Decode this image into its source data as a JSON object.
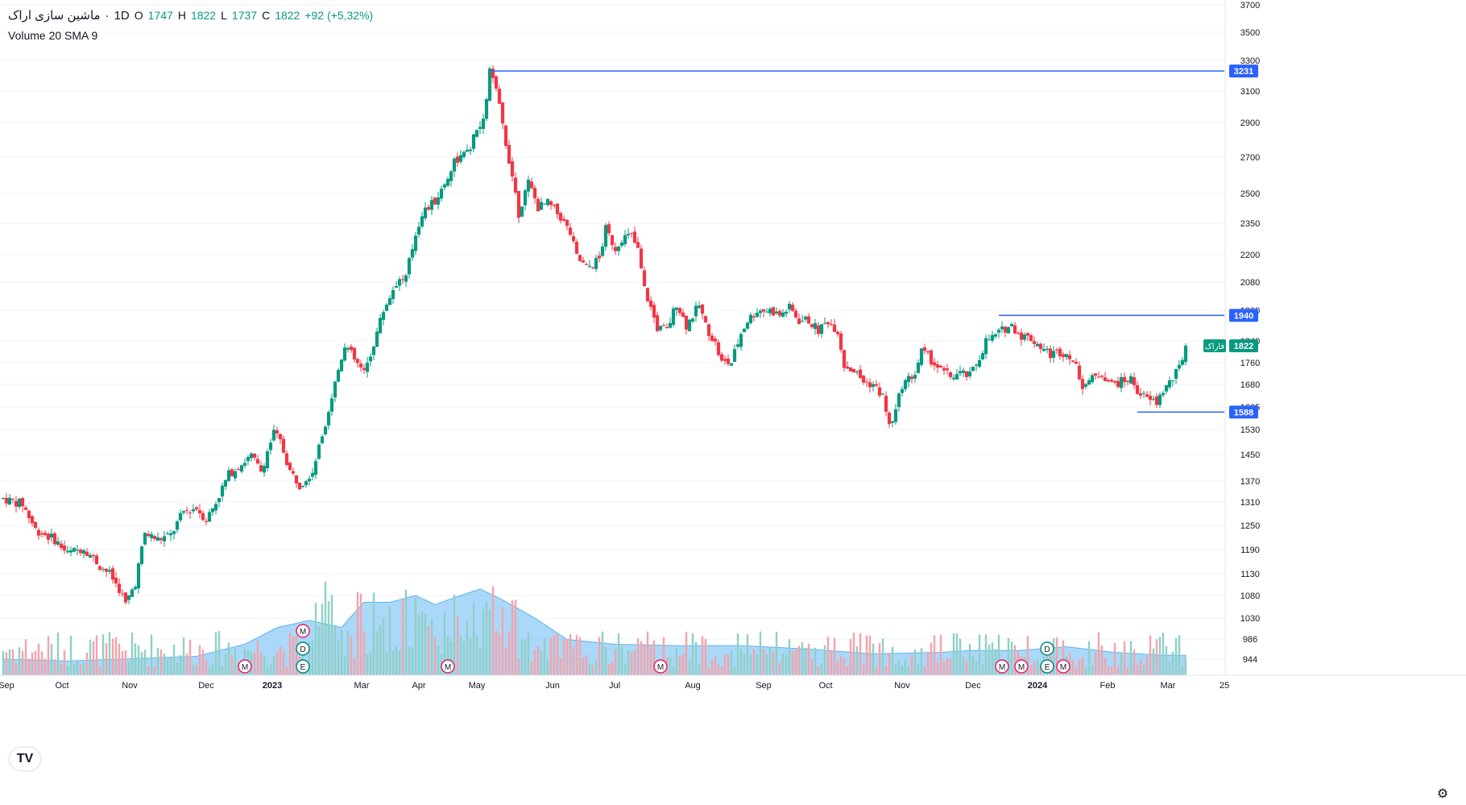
{
  "legend": {
    "symbol": "ماشین سازی اراک",
    "interval": "1D",
    "o_label": "O",
    "o": "1747",
    "h_label": "H",
    "h": "1822",
    "l_label": "L",
    "l": "1737",
    "c_label": "C",
    "c": "1822",
    "change": "+92 (+5,32%)",
    "volume_indicator": "Volume 20 SMA 9"
  },
  "colors": {
    "up": "#089981",
    "down": "#f23645",
    "up_volume": "#8fd0c6",
    "down_volume": "#f5a3aa",
    "volume_sma_fill": "#8ecbf5",
    "hline": "#2962ff",
    "grid": "#f0f3fa",
    "axis_text": "#131722"
  },
  "chart_data": {
    "type": "candlestick",
    "instrument": "ماشین سازی اراک",
    "interval": "1D",
    "y_ticks": [
      944,
      986,
      1030,
      1080,
      1130,
      1190,
      1250,
      1310,
      1370,
      1450,
      1530,
      1605,
      1680,
      1760,
      1840,
      1960,
      2080,
      2200,
      2350,
      2500,
      2700,
      2900,
      3100,
      3300,
      3500,
      3700
    ],
    "y_range": [
      880,
      3700
    ],
    "x_labels": [
      "Sep",
      "Oct",
      "Nov",
      "Dec",
      "2023",
      "Mar",
      "Apr",
      "May",
      "Jun",
      "Jul",
      "Aug",
      "Sep",
      "Oct",
      "Nov",
      "Dec",
      "2024",
      "Feb",
      "Mar",
      "25"
    ],
    "horizontal_lines": [
      {
        "value": 3231,
        "label": "3231"
      },
      {
        "value": 1940,
        "label": "1940"
      },
      {
        "value": 1588,
        "label": "1588"
      }
    ],
    "last_price": {
      "value": 1822,
      "label": "1822",
      "tag": "فاراک"
    },
    "price_path": [
      [
        0,
        1320
      ],
      [
        6,
        1305
      ],
      [
        10,
        1240
      ],
      [
        16,
        1215
      ],
      [
        20,
        1180
      ],
      [
        25,
        1195
      ],
      [
        30,
        1150
      ],
      [
        33,
        1130
      ],
      [
        36,
        1095
      ],
      [
        38,
        1060
      ],
      [
        41,
        1110
      ],
      [
        44,
        1230
      ],
      [
        48,
        1215
      ],
      [
        52,
        1225
      ],
      [
        56,
        1285
      ],
      [
        60,
        1295
      ],
      [
        63,
        1265
      ],
      [
        66,
        1310
      ],
      [
        70,
        1390
      ],
      [
        73,
        1415
      ],
      [
        77,
        1445
      ],
      [
        80,
        1400
      ],
      [
        84,
        1520
      ],
      [
        86,
        1490
      ],
      [
        89,
        1400
      ],
      [
        92,
        1360
      ],
      [
        96,
        1400
      ],
      [
        98,
        1470
      ],
      [
        102,
        1640
      ],
      [
        106,
        1830
      ],
      [
        109,
        1770
      ],
      [
        112,
        1720
      ],
      [
        114,
        1790
      ],
      [
        118,
        1960
      ],
      [
        122,
        2080
      ],
      [
        125,
        2100
      ],
      [
        128,
        2300
      ],
      [
        130,
        2400
      ],
      [
        134,
        2460
      ],
      [
        137,
        2550
      ],
      [
        140,
        2680
      ],
      [
        144,
        2720
      ],
      [
        147,
        2850
      ],
      [
        149,
        2900
      ],
      [
        151,
        3231
      ],
      [
        153,
        3100
      ],
      [
        156,
        2780
      ],
      [
        158,
        2600
      ],
      [
        160,
        2400
      ],
      [
        163,
        2560
      ],
      [
        166,
        2430
      ],
      [
        169,
        2450
      ],
      [
        173,
        2380
      ],
      [
        176,
        2300
      ],
      [
        178,
        2190
      ],
      [
        181,
        2140
      ],
      [
        185,
        2180
      ],
      [
        187,
        2320
      ],
      [
        190,
        2230
      ],
      [
        192,
        2280
      ],
      [
        195,
        2290
      ],
      [
        197,
        2220
      ],
      [
        199,
        2050
      ],
      [
        203,
        1890
      ],
      [
        206,
        1880
      ],
      [
        209,
        1990
      ],
      [
        212,
        1900
      ],
      [
        216,
        1980
      ],
      [
        218,
        1900
      ],
      [
        221,
        1830
      ],
      [
        223,
        1760
      ],
      [
        226,
        1760
      ],
      [
        229,
        1870
      ],
      [
        231,
        1920
      ],
      [
        234,
        1960
      ],
      [
        238,
        1960
      ],
      [
        241,
        1940
      ],
      [
        244,
        1970
      ],
      [
        247,
        1920
      ],
      [
        250,
        1920
      ],
      [
        253,
        1880
      ],
      [
        256,
        1920
      ],
      [
        259,
        1880
      ],
      [
        261,
        1750
      ],
      [
        264,
        1730
      ],
      [
        267,
        1690
      ],
      [
        270,
        1680
      ],
      [
        273,
        1640
      ],
      [
        275,
        1540
      ],
      [
        277,
        1590
      ],
      [
        279,
        1680
      ],
      [
        283,
        1720
      ],
      [
        285,
        1800
      ],
      [
        288,
        1770
      ],
      [
        291,
        1730
      ],
      [
        294,
        1710
      ],
      [
        297,
        1720
      ],
      [
        300,
        1710
      ],
      [
        303,
        1780
      ],
      [
        305,
        1840
      ],
      [
        308,
        1860
      ],
      [
        311,
        1890
      ],
      [
        313,
        1900
      ],
      [
        316,
        1860
      ],
      [
        319,
        1850
      ],
      [
        322,
        1820
      ],
      [
        325,
        1790
      ],
      [
        328,
        1800
      ],
      [
        331,
        1790
      ],
      [
        333,
        1740
      ],
      [
        335,
        1680
      ],
      [
        338,
        1700
      ],
      [
        341,
        1720
      ],
      [
        344,
        1680
      ],
      [
        347,
        1690
      ],
      [
        350,
        1700
      ],
      [
        352,
        1660
      ],
      [
        355,
        1630
      ],
      [
        358,
        1620
      ],
      [
        360,
        1660
      ],
      [
        363,
        1700
      ],
      [
        365,
        1740
      ],
      [
        367,
        1822
      ]
    ],
    "volume_sma_path": [
      [
        0,
        944
      ],
      [
        20,
        940
      ],
      [
        40,
        945
      ],
      [
        60,
        950
      ],
      [
        75,
        975
      ],
      [
        85,
        1010
      ],
      [
        95,
        1025
      ],
      [
        105,
        1010
      ],
      [
        112,
        1065
      ],
      [
        120,
        1065
      ],
      [
        128,
        1080
      ],
      [
        134,
        1060
      ],
      [
        142,
        1080
      ],
      [
        148,
        1095
      ],
      [
        155,
        1070
      ],
      [
        165,
        1030
      ],
      [
        175,
        985
      ],
      [
        190,
        975
      ],
      [
        210,
        972
      ],
      [
        230,
        972
      ],
      [
        250,
        965
      ],
      [
        270,
        955
      ],
      [
        290,
        958
      ],
      [
        300,
        962
      ],
      [
        315,
        962
      ],
      [
        330,
        970
      ],
      [
        345,
        958
      ],
      [
        360,
        952
      ],
      [
        368,
        952
      ]
    ],
    "event_markers": [
      {
        "type": "M",
        "x": 75
      },
      {
        "type": "M",
        "x": 93
      },
      {
        "type": "D",
        "x": 93
      },
      {
        "type": "E",
        "x": 93
      },
      {
        "type": "M",
        "x": 138
      },
      {
        "type": "M",
        "x": 204
      },
      {
        "type": "M",
        "x": 310
      },
      {
        "type": "M",
        "x": 316
      },
      {
        "type": "D",
        "x": 324
      },
      {
        "type": "E",
        "x": 324
      },
      {
        "type": "M",
        "x": 329
      }
    ]
  }
}
